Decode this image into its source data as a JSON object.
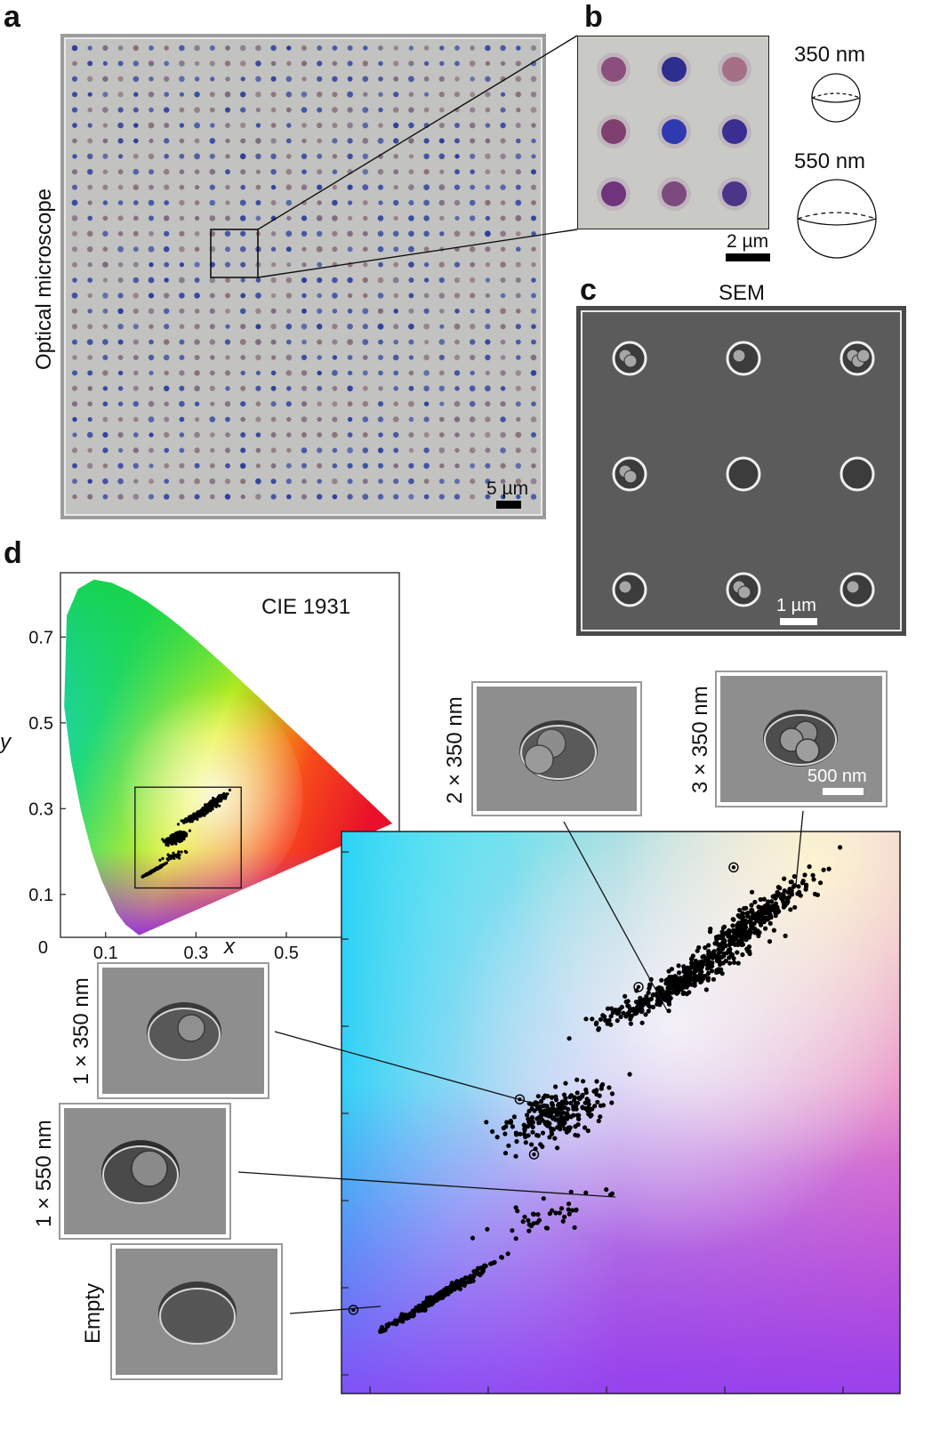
{
  "panels": {
    "a": {
      "label": "a",
      "axis_title": "Optical microscope",
      "scale_bar": "5 µm",
      "dot_colors": [
        "#2b3d9c",
        "#8a6f78",
        "#3a4fa3",
        "#7d6a80"
      ]
    },
    "b": {
      "label": "b",
      "scale_bar": "2 µm",
      "sphere_small": "350 nm",
      "sphere_large": "550 nm",
      "dot_colors": [
        "#8a4f7c",
        "#2d2f8f",
        "#a56f84",
        "#80406f",
        "#2f3ab0",
        "#3a2f90",
        "#70347c",
        "#7c4a7e",
        "#4a3588"
      ]
    },
    "c": {
      "label": "c",
      "title": "SEM",
      "scale_bar": "1 µm"
    },
    "d": {
      "label": "d",
      "cie_title": "CIE 1931",
      "xlabel": "x",
      "ylabel": "y",
      "thumbnails": [
        {
          "label": "2 × 350 nm"
        },
        {
          "label": "3 × 350 nm",
          "scale_bar": "500 nm"
        },
        {
          "label": "1 × 350 nm"
        },
        {
          "label": "1 × 550 nm"
        },
        {
          "label": "Empty"
        }
      ]
    }
  },
  "chart_data": {
    "type": "scatter",
    "title": "CIE 1931",
    "xlabel": "x",
    "ylabel": "y",
    "x_ticks": [
      "0.1",
      "0.3",
      "0.5"
    ],
    "y_ticks": [
      "0.1",
      "0.3",
      "0.5",
      "0.7"
    ],
    "origin_label": "0",
    "xlim": [
      0,
      0.75
    ],
    "ylim": [
      0,
      0.85
    ],
    "zoom_box": {
      "x": [
        0.165,
        0.4
      ],
      "y": [
        0.115,
        0.35
      ]
    },
    "clusters": [
      {
        "name": "Empty",
        "center": [
          0.205,
          0.155
        ],
        "count": 260
      },
      {
        "name": "1 × 550 nm",
        "center": [
          0.255,
          0.19
        ],
        "count": 40
      },
      {
        "name": "1 × 350 nm",
        "center": [
          0.255,
          0.232
        ],
        "count": 240
      },
      {
        "name": "2 × 350 nm",
        "center": [
          0.305,
          0.285
        ],
        "count": 300
      },
      {
        "name": "3 × 350 nm",
        "center": [
          0.335,
          0.31
        ],
        "count": 360
      }
    ],
    "highlighted_points": [
      {
        "name": "2 × 350 nm",
        "x": 0.29,
        "y": 0.285
      },
      {
        "name": "3 × 350 nm",
        "x": 0.33,
        "y": 0.335
      },
      {
        "name": "1 × 350 nm",
        "x": 0.24,
        "y": 0.238
      },
      {
        "name": "1 × 550 nm",
        "x": 0.246,
        "y": 0.215
      },
      {
        "name": "Empty",
        "x": 0.17,
        "y": 0.15
      }
    ]
  }
}
